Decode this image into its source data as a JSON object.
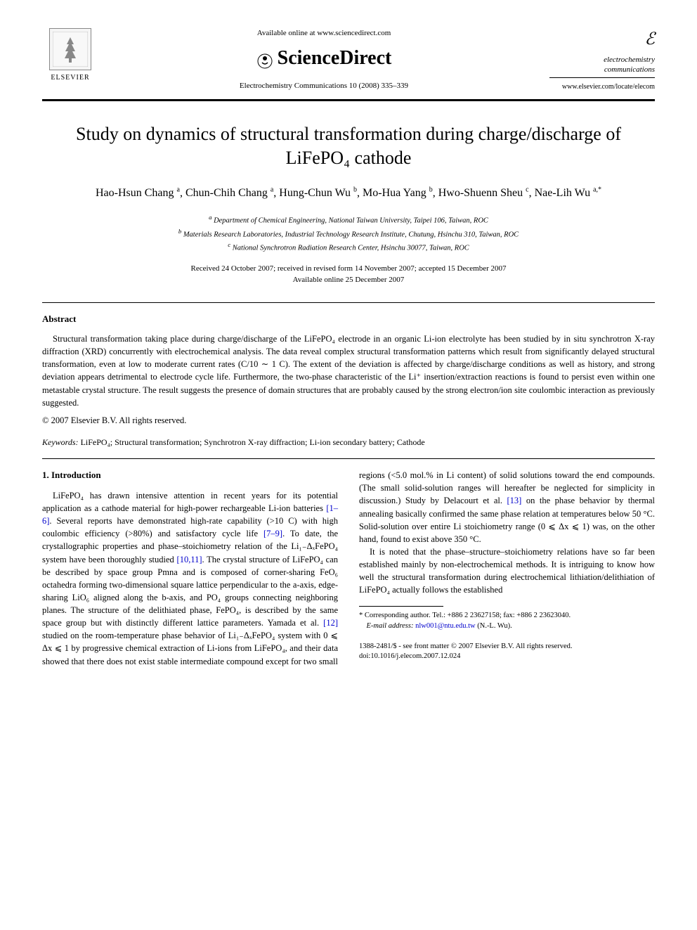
{
  "header": {
    "elsevier_label": "ELSEVIER",
    "available_online": "Available online at www.sciencedirect.com",
    "sciencedirect": "ScienceDirect",
    "journal_ref": "Electrochemistry Communications 10 (2008) 335–339",
    "journal_icon": "ℰ",
    "journal_name": "electrochemistry\ncommunications",
    "journal_url": "www.elsevier.com/locate/elecom"
  },
  "title": "Study on dynamics of structural transformation during charge/discharge of LiFePO₄ cathode",
  "authors_html": "Hao-Hsun Chang <sup>a</sup>, Chun-Chih Chang <sup>a</sup>, Hung-Chun Wu <sup>b</sup>, Mo-Hua Yang <sup>b</sup>, Hwo-Shuenn Sheu <sup>c</sup>, Nae-Lih Wu <sup>a,*</sup>",
  "affiliations": {
    "a": "Department of Chemical Engineering, National Taiwan University, Taipei 106, Taiwan, ROC",
    "b": "Materials Research Laboratories, Industrial Technology Research Institute, Chutung, Hsinchu 310, Taiwan, ROC",
    "c": "National Synchrotron Radiation Research Center, Hsinchu 30077, Taiwan, ROC"
  },
  "dates": "Received 24 October 2007; received in revised form 14 November 2007; accepted 15 December 2007\nAvailable online 25 December 2007",
  "abstract": {
    "heading": "Abstract",
    "text": "Structural transformation taking place during charge/discharge of the LiFePO₄ electrode in an organic Li-ion electrolyte has been studied by in situ synchrotron X-ray diffraction (XRD) concurrently with electrochemical analysis. The data reveal complex structural transformation patterns which result from significantly delayed structural transformation, even at low to moderate current rates (C/10 ∼ 1 C). The extent of the deviation is affected by charge/discharge conditions as well as history, and strong deviation appears detrimental to electrode cycle life. Furthermore, the two-phase characteristic of the Li⁺ insertion/extraction reactions is found to persist even within one metastable crystal structure. The result suggests the presence of domain structures that are probably caused by the strong electron/ion site coulombic interaction as previously suggested.",
    "copyright": "© 2007 Elsevier B.V. All rights reserved."
  },
  "keywords": {
    "label": "Keywords:",
    "text": " LiFePO₄; Structural transformation; Synchrotron X-ray diffraction; Li-ion secondary battery; Cathode"
  },
  "intro": {
    "heading": "1. Introduction",
    "p1_pre": "LiFePO₄ has drawn intensive attention in recent years for its potential application as a cathode material for high-power rechargeable Li-ion batteries ",
    "p1_ref1": "[1–6]",
    "p1_mid1": ". Several reports have demonstrated high-rate capability (>10 C) with high coulombic efficiency (>80%) and satisfactory cycle life ",
    "p1_ref2": "[7–9]",
    "p1_mid2": ". To date, the crystallographic properties and phase–stoichiometry relation of the Li₁₋ΔₓFePO₄ system have been thoroughly studied ",
    "p1_ref3": "[10,11]",
    "p1_mid3": ". The crystal structure of LiFePO₄ can be described by space group Pmna and is composed of corner-sharing FeO₆ octahedra forming two-dimensional square lattice perpendicular to the a-axis, edge-sharing LiO₆ aligned along the b-axis, and PO₄ groups connecting neighboring planes. The structure of the delithiated phase, FePO₄, is described by the same space group but with distinctly different lattice parameters. Yamada et al. ",
    "p1_ref4": "[12]",
    "p1_mid4": " studied on the room-temperature phase behavior of Li₁₋ΔₓFePO₄ system with 0 ⩽ Δx ⩽ 1 by progressive chemical extraction of Li-ions from LiFePO₄, and their data showed that there does not exist stable intermediate compound except for two small regions (<5.0 mol.% in Li content) of solid solutions toward the end compounds. (The small solid-solution ranges will hereafter be neglected for simplicity in discussion.) Study by Delacourt et al. ",
    "p1_ref5": "[13]",
    "p1_post": " on the phase behavior by thermal annealing basically confirmed the same phase relation at temperatures below 50 °C. Solid-solution over entire Li stoichiometry range (0 ⩽ Δx ⩽ 1) was, on the other hand, found to exist above 350 °C.",
    "p2": "It is noted that the phase–structure–stoichiometry relations have so far been established mainly by non-electrochemical methods. It is intriguing to know how well the structural transformation during electrochemical lithiation/delithiation of LiFePO₄ actually follows the established"
  },
  "footnote": {
    "corresponding": "* Corresponding author. Tel.: +886 2 23627158; fax: +886 2 23623040.",
    "email_label": "E-mail address:",
    "email": "nlw001@ntu.edu.tw",
    "email_who": " (N.-L. Wu)."
  },
  "bottom": {
    "line1": "1388-2481/$ - see front matter © 2007 Elsevier B.V. All rights reserved.",
    "line2": "doi:10.1016/j.elecom.2007.12.024"
  },
  "colors": {
    "text": "#000000",
    "link": "#0000cc",
    "background": "#ffffff"
  }
}
